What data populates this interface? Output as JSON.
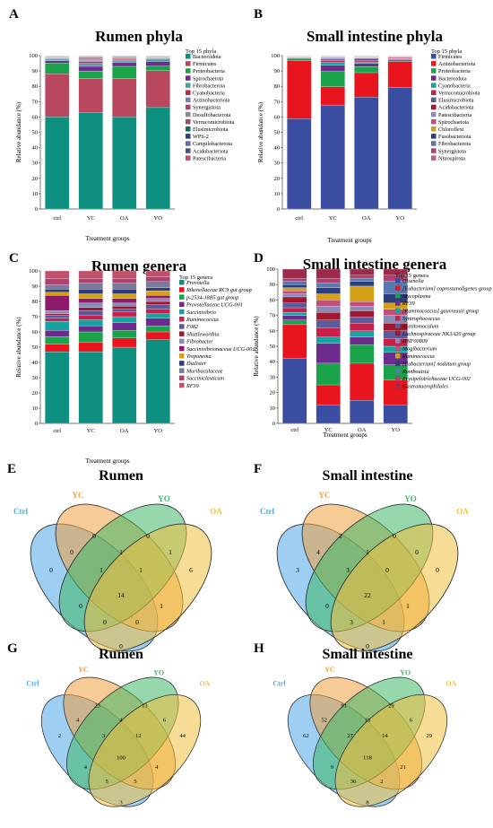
{
  "panels": [
    {
      "letter": "A",
      "title": "Rumen phyla",
      "type": "bar",
      "stacked": true,
      "ylabel": "Relative abundance (%)",
      "xlabel": "Treatment groups",
      "ylim": [
        0,
        100
      ],
      "yticks": [
        0,
        10,
        20,
        30,
        40,
        50,
        60,
        70,
        80,
        90,
        100
      ],
      "categories": [
        "ctrl",
        "YC",
        "OA",
        "YO"
      ],
      "legend_title": "Top 15 phyla",
      "legend_position": "right",
      "legend_italic": false,
      "series": [
        {
          "name": "Bacteroidota",
          "color": "#0f8f7f",
          "values": [
            60,
            63,
            60,
            66
          ]
        },
        {
          "name": "Firmicutes",
          "color": "#b8485e",
          "values": [
            28,
            22,
            25,
            24
          ]
        },
        {
          "name": "Proteobacteria",
          "color": "#1aa34a",
          "values": [
            7,
            5,
            8,
            3
          ]
        },
        {
          "name": "Spirochaetota",
          "color": "#6d2b8e",
          "values": [
            1.5,
            3,
            2.5,
            3
          ]
        },
        {
          "name": "Fibrobacterota",
          "color": "#4aa3a0",
          "values": [
            1,
            2,
            1.5,
            1.5
          ]
        },
        {
          "name": "Cyanobacteria",
          "color": "#c8204b",
          "values": [
            0.5,
            1,
            0.6,
            0.5
          ]
        },
        {
          "name": "Actinobacteriota",
          "color": "#7a7fb5",
          "values": [
            0.3,
            1,
            0.5,
            0.3
          ]
        },
        {
          "name": "Synergistota",
          "color": "#b04070",
          "values": [
            0.3,
            0.5,
            0.4,
            0.3
          ]
        },
        {
          "name": "Desulfobacterota",
          "color": "#8a8a8a",
          "values": [
            0.3,
            0.6,
            0.4,
            0.3
          ]
        },
        {
          "name": "Verrucomicrobiota",
          "color": "#a04a6a",
          "values": [
            0.3,
            0.5,
            0.3,
            0.3
          ]
        },
        {
          "name": "Elusimicrobiota",
          "color": "#0d6e62",
          "values": [
            0.2,
            0.4,
            0.3,
            0.2
          ]
        },
        {
          "name": "WPS-2",
          "color": "#2c3e7a",
          "values": [
            0.1,
            0.3,
            0.2,
            0.1
          ]
        },
        {
          "name": "Campilobacterota",
          "color": "#6a6aa8",
          "values": [
            0.1,
            0.3,
            0.1,
            0.1
          ]
        },
        {
          "name": "Acidobacteriota",
          "color": "#4b4f8a",
          "values": [
            0.1,
            0.2,
            0.1,
            0.1
          ]
        },
        {
          "name": "Patescibacteria",
          "color": "#c0506a",
          "values": [
            0.1,
            0.2,
            0.1,
            0.1
          ]
        }
      ]
    },
    {
      "letter": "B",
      "title": "Small intestine phyla",
      "type": "bar",
      "stacked": true,
      "ylabel": "Relative abundance (%)",
      "xlabel": "Treatment groups",
      "ylim": [
        0,
        100
      ],
      "yticks": [
        0,
        10,
        20,
        30,
        40,
        50,
        60,
        70,
        80,
        90,
        100
      ],
      "categories": [
        "ctrl",
        "YC",
        "OA",
        "YO"
      ],
      "legend_title": "Top 15 phyla",
      "legend_position": "right",
      "legend_italic": false,
      "series": [
        {
          "name": "Firmicutes",
          "color": "#3b4da0",
          "values": [
            59,
            68,
            73,
            79
          ]
        },
        {
          "name": "Actinobacteriota",
          "color": "#e8141e",
          "values": [
            38,
            12,
            16,
            17
          ]
        },
        {
          "name": "Proteobacteria",
          "color": "#1aa34a",
          "values": [
            1,
            10,
            4,
            1
          ]
        },
        {
          "name": "Bacteroidota",
          "color": "#6d2b8e",
          "values": [
            0.5,
            4,
            2,
            0.5
          ]
        },
        {
          "name": "Cyanobacteria",
          "color": "#17a2a0",
          "values": [
            0.3,
            2,
            1,
            0.5
          ]
        },
        {
          "name": "Verrucomicrobiota",
          "color": "#c8204b",
          "values": [
            0.3,
            1,
            1,
            0.5
          ]
        },
        {
          "name": "Elusimicrobiota",
          "color": "#5b5b9c",
          "values": [
            0.2,
            1,
            1,
            0.3
          ]
        },
        {
          "name": "Acidobacteriota",
          "color": "#a01830",
          "values": [
            0.2,
            0.5,
            0.5,
            0.2
          ]
        },
        {
          "name": "Patescibacteria",
          "color": "#8a8ab8",
          "values": [
            0.1,
            0.5,
            0.3,
            0.2
          ]
        },
        {
          "name": "Spirochaetota",
          "color": "#c0507a",
          "values": [
            0.1,
            0.3,
            0.3,
            0.1
          ]
        },
        {
          "name": "Chloroflexi",
          "color": "#d4a017",
          "values": [
            0.1,
            0.3,
            0.3,
            0.1
          ]
        },
        {
          "name": "Fusobacteriota",
          "color": "#2c3e7a",
          "values": [
            0.1,
            0.2,
            0.2,
            0.1
          ]
        },
        {
          "name": "Fibrobacterota",
          "color": "#5a78b0",
          "values": [
            0.1,
            0.2,
            0.2,
            0.1
          ]
        },
        {
          "name": "Synergistota",
          "color": "#b04070",
          "values": [
            0.1,
            0.2,
            0.2,
            0.1
          ]
        },
        {
          "name": "Nitrospirota",
          "color": "#c06080",
          "values": [
            0.1,
            0.1,
            0.1,
            0.1
          ]
        }
      ]
    },
    {
      "letter": "C",
      "title": "Rumen genera",
      "type": "bar",
      "stacked": true,
      "ylabel": "Relative abundance (%)",
      "xlabel": "Treatment groups",
      "ylim": [
        0,
        100
      ],
      "yticks": [
        0,
        10,
        20,
        30,
        40,
        50,
        60,
        70,
        80,
        90,
        100
      ],
      "categories": [
        "ctrl",
        "YC",
        "OA",
        "YO"
      ],
      "legend_title": "Top 15 genera",
      "legend_position": "right",
      "legend_italic": true,
      "series": [
        {
          "name": "Prevotella",
          "color": "#0f8f7f",
          "values": [
            47,
            47,
            50,
            55
          ]
        },
        {
          "name": "Rikenellaceae RC9 gut group",
          "color": "#e8141e",
          "values": [
            5,
            6,
            6,
            5
          ]
        },
        {
          "name": "p-2534-18B5 gut group",
          "color": "#1aa34a",
          "values": [
            5,
            7,
            5,
            4
          ]
        },
        {
          "name": "Prevotellaceae UCG-001",
          "color": "#6d2b8e",
          "values": [
            4,
            4,
            5,
            5
          ]
        },
        {
          "name": "Succinivibrio",
          "color": "#17a2a0",
          "values": [
            6,
            4,
            4,
            3
          ]
        },
        {
          "name": "Ruminococcus",
          "color": "#c8204b",
          "values": [
            2,
            3,
            3,
            3
          ]
        },
        {
          "name": "F082",
          "color": "#5b5b9c",
          "values": [
            2,
            3,
            2,
            3
          ]
        },
        {
          "name": "Shuttleworthia",
          "color": "#a01830",
          "values": [
            1,
            2,
            2,
            2
          ]
        },
        {
          "name": "Fibrobacter",
          "color": "#8a8ab8",
          "values": [
            2,
            3,
            2,
            2
          ]
        },
        {
          "name": "Succinivibrionaceae UCG-001",
          "color": "#8b1a6b",
          "values": [
            10,
            3,
            3,
            2
          ]
        },
        {
          "name": "Treponema",
          "color": "#d4a017",
          "values": [
            2,
            3,
            3,
            3
          ]
        },
        {
          "name": "Dialister",
          "color": "#2c3e7a",
          "values": [
            2,
            3,
            3,
            2
          ]
        },
        {
          "name": "Muribaculaceae",
          "color": "#7a7a9a",
          "values": [
            3,
            4,
            4,
            4
          ]
        },
        {
          "name": "Succiniclasticum",
          "color": "#b04070",
          "values": [
            4,
            3,
            3,
            3
          ]
        },
        {
          "name": "RF39",
          "color": "#c0506a",
          "values": [
            5,
            5,
            5,
            4
          ]
        }
      ]
    },
    {
      "letter": "D",
      "title": "Small intestine genera",
      "type": "bar",
      "stacked": true,
      "ylabel": "Relative abundance (%)",
      "xlabel": "Treatment groups",
      "ylim": [
        0,
        100
      ],
      "yticks": [
        0,
        10,
        20,
        30,
        40,
        50,
        60,
        70,
        80,
        90,
        100
      ],
      "categories": [
        "ctrl",
        "YC",
        "OA",
        "YO"
      ],
      "legend_title": "Top 15 genera",
      "legend_position": "right",
      "legend_italic": true,
      "series": [
        {
          "name": "Olsenella",
          "color": "#3b4da0",
          "values": [
            42,
            12,
            15,
            12
          ]
        },
        {
          "name": "[Eubacterium] coprostanoligenes group",
          "color": "#e8141e",
          "values": [
            22,
            13,
            24,
            16
          ]
        },
        {
          "name": "Mycoplasma",
          "color": "#1aa34a",
          "values": [
            3,
            14,
            12,
            10
          ]
        },
        {
          "name": "RF39",
          "color": "#6d2b8e",
          "values": [
            3,
            13,
            5,
            8
          ]
        },
        {
          "name": "[Ruminococcus] gauvreauii group",
          "color": "#17a2a0",
          "values": [
            2,
            4,
            4,
            4
          ]
        },
        {
          "name": "Syntrophococcus",
          "color": "#c8204b",
          "values": [
            3,
            6,
            5,
            5
          ]
        },
        {
          "name": "Acetitomaculum",
          "color": "#5b5b9c",
          "values": [
            3,
            5,
            4,
            5
          ]
        },
        {
          "name": "Lachnospiraceae NK3A20 group",
          "color": "#a01830",
          "values": [
            4,
            5,
            4,
            5
          ]
        },
        {
          "name": "DNF00809",
          "color": "#8a8ab8",
          "values": [
            2,
            4,
            3,
            5
          ]
        },
        {
          "name": "Mogibacterium",
          "color": "#c0507a",
          "values": [
            2,
            4,
            3,
            4
          ]
        },
        {
          "name": "Ruminococcus",
          "color": "#d4a017",
          "values": [
            2,
            4,
            10,
            4
          ]
        },
        {
          "name": "[Eubacterium] nodatum group",
          "color": "#2c3e7a",
          "values": [
            2,
            4,
            3,
            6
          ]
        },
        {
          "name": "Romboutsia",
          "color": "#5a78b0",
          "values": [
            2,
            3,
            2,
            8
          ]
        },
        {
          "name": "Erysipelotrichaceae UCG-002",
          "color": "#b04070",
          "values": [
            2,
            3,
            2,
            4
          ]
        },
        {
          "name": "Gastranaerophilales",
          "color": "#9c2a4a",
          "values": [
            6,
            6,
            4,
            4
          ]
        }
      ]
    }
  ],
  "venns": [
    {
      "letter": "E",
      "title": "Rumen",
      "sets": [
        {
          "name": "Ctrl",
          "color": "#4fa8e8"
        },
        {
          "name": "YC",
          "color": "#f0a040"
        },
        {
          "name": "YO",
          "color": "#40b868"
        },
        {
          "name": "OA",
          "color": "#f0c040"
        }
      ],
      "regions": {
        "ctrl": "0",
        "yc": "0",
        "yo": "0",
        "oa": "6",
        "ctrl_yc": "0",
        "yc_yo": "1",
        "yo_oa": "1",
        "ctrl_oa": "0",
        "ctrl_yo": "0",
        "yc_oa": "1",
        "ctrl_yc_yo": "1",
        "yc_yo_oa": "1",
        "ctrl_yc_oa": "0",
        "ctrl_yo_oa": "0",
        "all": "14"
      }
    },
    {
      "letter": "F",
      "title": "Small intestine",
      "sets": [
        {
          "name": "Ctrl",
          "color": "#4fa8e8"
        },
        {
          "name": "YC",
          "color": "#f0a040"
        },
        {
          "name": "YO",
          "color": "#40b868"
        },
        {
          "name": "OA",
          "color": "#f0c040"
        }
      ],
      "regions": {
        "ctrl": "3",
        "yc": "2",
        "yo": "0",
        "oa": "0",
        "ctrl_yc": "4",
        "yc_yo": "1",
        "yo_oa": "0",
        "ctrl_oa": "0",
        "ctrl_yo": "0",
        "yc_oa": "1",
        "ctrl_yc_yo": "3",
        "yc_yo_oa": "0",
        "ctrl_yc_oa": "1",
        "ctrl_yo_oa": "3",
        "all": "22"
      }
    },
    {
      "letter": "G",
      "title": "Rumen",
      "sets": [
        {
          "name": "Ctrl",
          "color": "#4fa8e8"
        },
        {
          "name": "YC",
          "color": "#f0a040"
        },
        {
          "name": "YO",
          "color": "#40b868"
        },
        {
          "name": "OA",
          "color": "#f0c040"
        }
      ],
      "regions": {
        "ctrl": "2",
        "yc": "23",
        "yo": "13",
        "oa": "44",
        "ctrl_yc": "4",
        "yc_yo": "4",
        "yo_oa": "6",
        "ctrl_oa": "3",
        "ctrl_yo": "4",
        "yc_oa": "4",
        "ctrl_yc_yo": "3",
        "yc_yo_oa": "12",
        "ctrl_yc_oa": "5",
        "ctrl_yo_oa": "5",
        "all": "100"
      }
    },
    {
      "letter": "H",
      "title": "Small intestine",
      "sets": [
        {
          "name": "Ctrl",
          "color": "#4fa8e8"
        },
        {
          "name": "YC",
          "color": "#f0a040"
        },
        {
          "name": "YO",
          "color": "#40b868"
        },
        {
          "name": "OA",
          "color": "#f0c040"
        }
      ],
      "regions": {
        "ctrl": "62",
        "yc": "91",
        "yo": "29",
        "oa": "29",
        "ctrl_yc": "52",
        "yc_yo": "18",
        "yo_oa": "6",
        "ctrl_oa": "8",
        "ctrl_yo": "9",
        "yc_oa": "21",
        "ctrl_yc_yo": "27",
        "yc_yo_oa": "14",
        "ctrl_yc_oa": "2",
        "ctrl_yo_oa": "36",
        "all": "118"
      }
    }
  ]
}
